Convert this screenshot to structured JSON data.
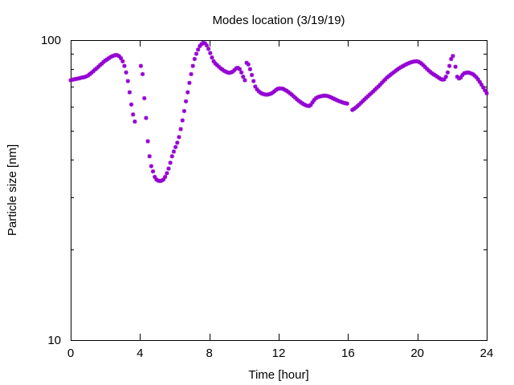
{
  "chart_data": {
    "type": "scatter",
    "title": "Modes location (3/19/19)",
    "xlabel": "Time [hour]",
    "ylabel": "Particle size [nm]",
    "xlim": [
      0,
      24
    ],
    "ylim": [
      10,
      100
    ],
    "yscale": "log",
    "xticks": [
      0,
      4,
      8,
      12,
      16,
      20,
      24
    ],
    "xtick_labels": [
      "0",
      "4",
      "8",
      "12",
      "16",
      "20",
      "24"
    ],
    "yticks": [
      10,
      100
    ],
    "ytick_labels": [
      "10",
      "100"
    ],
    "grid": false,
    "legend": "none",
    "marker": "asterisk",
    "color": "#9400d3",
    "series": [
      {
        "points": [
          [
            0.0,
            73.5
          ],
          [
            0.1,
            73.8
          ],
          [
            0.2,
            74.0
          ],
          [
            0.3,
            74.2
          ],
          [
            0.4,
            74.4
          ],
          [
            0.5,
            74.6
          ],
          [
            0.6,
            74.9
          ],
          [
            0.7,
            75.1
          ],
          [
            0.8,
            75.3
          ],
          [
            0.9,
            75.7
          ],
          [
            1.0,
            76.2
          ],
          [
            1.1,
            77.0
          ],
          [
            1.2,
            77.8
          ],
          [
            1.3,
            78.7
          ],
          [
            1.4,
            79.7
          ],
          [
            1.5,
            80.5
          ],
          [
            1.6,
            81.5
          ],
          [
            1.7,
            82.6
          ],
          [
            1.8,
            83.5
          ],
          [
            1.9,
            84.6
          ],
          [
            2.0,
            85.5
          ],
          [
            2.1,
            86.2
          ],
          [
            2.2,
            87.0
          ],
          [
            2.3,
            87.8
          ],
          [
            2.4,
            88.4
          ],
          [
            2.5,
            88.8
          ],
          [
            2.6,
            89.2
          ],
          [
            2.7,
            89.0
          ],
          [
            2.8,
            88.3
          ],
          [
            2.9,
            87.0
          ],
          [
            3.0,
            85.0
          ],
          [
            3.1,
            82.0
          ],
          [
            3.2,
            78.0
          ],
          [
            3.3,
            73.0
          ],
          [
            3.4,
            67.0
          ],
          [
            3.5,
            61.0
          ],
          [
            3.6,
            56.5
          ],
          [
            3.7,
            53.5
          ],
          [
            4.05,
            82.0
          ],
          [
            4.15,
            77.0
          ],
          [
            4.25,
            64.0
          ],
          [
            4.35,
            55.0
          ],
          [
            4.45,
            46.0
          ],
          [
            4.55,
            41.0
          ],
          [
            4.65,
            38.0
          ],
          [
            4.75,
            36.5
          ],
          [
            4.85,
            35.0
          ],
          [
            4.95,
            34.3
          ],
          [
            5.05,
            34.0
          ],
          [
            5.15,
            33.9
          ],
          [
            5.25,
            34.0
          ],
          [
            5.35,
            34.3
          ],
          [
            5.45,
            35.0
          ],
          [
            5.55,
            36.0
          ],
          [
            5.65,
            37.3
          ],
          [
            5.75,
            39.0
          ],
          [
            5.85,
            41.0
          ],
          [
            5.95,
            42.5
          ],
          [
            6.05,
            44.0
          ],
          [
            6.15,
            45.5
          ],
          [
            6.25,
            47.5
          ],
          [
            6.35,
            50.5
          ],
          [
            6.45,
            54.0
          ],
          [
            6.55,
            58.0
          ],
          [
            6.65,
            62.5
          ],
          [
            6.75,
            67.0
          ],
          [
            6.85,
            72.0
          ],
          [
            6.95,
            77.0
          ],
          [
            7.05,
            82.0
          ],
          [
            7.15,
            86.5
          ],
          [
            7.25,
            90.0
          ],
          [
            7.35,
            93.0
          ],
          [
            7.45,
            95.5
          ],
          [
            7.55,
            97.0
          ],
          [
            7.65,
            98.0
          ],
          [
            7.75,
            97.5
          ],
          [
            7.85,
            96.0
          ],
          [
            7.95,
            93.5
          ],
          [
            8.05,
            90.5
          ],
          [
            8.15,
            87.5
          ],
          [
            8.25,
            85.0
          ],
          [
            8.35,
            83.5
          ],
          [
            8.45,
            82.5
          ],
          [
            8.55,
            81.5
          ],
          [
            8.65,
            80.5
          ],
          [
            8.75,
            79.8
          ],
          [
            8.85,
            79.0
          ],
          [
            8.95,
            78.5
          ],
          [
            9.05,
            78.0
          ],
          [
            9.15,
            77.8
          ],
          [
            9.25,
            78.0
          ],
          [
            9.35,
            78.5
          ],
          [
            9.45,
            79.5
          ],
          [
            9.55,
            80.5
          ],
          [
            9.65,
            80.8
          ],
          [
            9.75,
            80.0
          ],
          [
            9.85,
            78.0
          ],
          [
            9.95,
            75.5
          ],
          [
            10.05,
            73.5
          ],
          [
            10.15,
            84.0
          ],
          [
            10.25,
            83.0
          ],
          [
            10.35,
            80.0
          ],
          [
            10.45,
            76.5
          ],
          [
            10.55,
            73.0
          ],
          [
            10.65,
            70.0
          ],
          [
            10.75,
            68.5
          ],
          [
            10.85,
            67.5
          ],
          [
            10.95,
            66.8
          ],
          [
            11.05,
            66.3
          ],
          [
            11.15,
            66.0
          ],
          [
            11.25,
            65.8
          ],
          [
            11.35,
            65.8
          ],
          [
            11.45,
            66.0
          ],
          [
            11.55,
            66.3
          ],
          [
            11.65,
            66.8
          ],
          [
            11.75,
            67.5
          ],
          [
            11.85,
            68.2
          ],
          [
            11.95,
            68.8
          ],
          [
            12.05,
            69.0
          ],
          [
            12.15,
            69.0
          ],
          [
            12.25,
            68.8
          ],
          [
            12.35,
            68.3
          ],
          [
            12.45,
            67.8
          ],
          [
            12.55,
            67.2
          ],
          [
            12.65,
            66.5
          ],
          [
            12.75,
            65.8
          ],
          [
            12.85,
            65.0
          ],
          [
            12.95,
            64.3
          ],
          [
            13.05,
            63.5
          ],
          [
            13.15,
            62.8
          ],
          [
            13.25,
            62.2
          ],
          [
            13.35,
            61.6
          ],
          [
            13.45,
            61.1
          ],
          [
            13.55,
            60.7
          ],
          [
            13.65,
            60.4
          ],
          [
            13.75,
            60.3
          ],
          [
            13.85,
            60.8
          ],
          [
            13.95,
            62.0
          ],
          [
            14.05,
            63.2
          ],
          [
            14.15,
            64.0
          ],
          [
            14.25,
            64.5
          ],
          [
            14.35,
            64.8
          ],
          [
            14.45,
            65.0
          ],
          [
            14.55,
            65.2
          ],
          [
            14.65,
            65.3
          ],
          [
            14.75,
            65.2
          ],
          [
            14.85,
            65.0
          ],
          [
            14.95,
            64.7
          ],
          [
            15.05,
            64.3
          ],
          [
            15.15,
            63.9
          ],
          [
            15.25,
            63.5
          ],
          [
            15.35,
            63.1
          ],
          [
            15.45,
            62.7
          ],
          [
            15.55,
            62.4
          ],
          [
            15.65,
            62.1
          ],
          [
            15.75,
            61.8
          ],
          [
            15.85,
            61.6
          ],
          [
            15.95,
            61.4
          ],
          [
            16.25,
            58.5
          ],
          [
            16.35,
            59.0
          ],
          [
            16.45,
            59.6
          ],
          [
            16.55,
            60.3
          ],
          [
            16.65,
            61.0
          ],
          [
            16.75,
            61.8
          ],
          [
            16.85,
            62.6
          ],
          [
            16.95,
            63.4
          ],
          [
            17.05,
            64.2
          ],
          [
            17.15,
            65.0
          ],
          [
            17.25,
            65.8
          ],
          [
            17.35,
            66.6
          ],
          [
            17.45,
            67.4
          ],
          [
            17.55,
            68.3
          ],
          [
            17.65,
            69.2
          ],
          [
            17.75,
            70.0
          ],
          [
            17.85,
            71.0
          ],
          [
            17.95,
            72.0
          ],
          [
            18.05,
            73.0
          ],
          [
            18.15,
            74.0
          ],
          [
            18.25,
            75.0
          ],
          [
            18.35,
            75.8
          ],
          [
            18.45,
            76.6
          ],
          [
            18.55,
            77.4
          ],
          [
            18.65,
            78.2
          ],
          [
            18.75,
            79.0
          ],
          [
            18.85,
            79.8
          ],
          [
            18.95,
            80.5
          ],
          [
            19.05,
            81.2
          ],
          [
            19.15,
            81.8
          ],
          [
            19.25,
            82.4
          ],
          [
            19.35,
            83.0
          ],
          [
            19.45,
            83.5
          ],
          [
            19.55,
            84.0
          ],
          [
            19.65,
            84.4
          ],
          [
            19.75,
            84.7
          ],
          [
            19.85,
            84.9
          ],
          [
            19.95,
            85.0
          ],
          [
            20.05,
            84.8
          ],
          [
            20.15,
            84.2
          ],
          [
            20.25,
            83.4
          ],
          [
            20.35,
            82.4
          ],
          [
            20.45,
            81.3
          ],
          [
            20.55,
            80.2
          ],
          [
            20.65,
            79.2
          ],
          [
            20.75,
            78.3
          ],
          [
            20.85,
            77.5
          ],
          [
            20.95,
            76.8
          ],
          [
            21.05,
            76.2
          ],
          [
            21.15,
            75.5
          ],
          [
            21.25,
            74.8
          ],
          [
            21.35,
            74.2
          ],
          [
            21.45,
            73.8
          ],
          [
            21.55,
            74.0
          ],
          [
            21.65,
            75.5
          ],
          [
            21.75,
            78.0
          ],
          [
            21.85,
            82.0
          ],
          [
            21.95,
            86.5
          ],
          [
            22.05,
            88.5
          ],
          [
            22.2,
            81.5
          ],
          [
            22.3,
            75.5
          ],
          [
            22.4,
            74.5
          ],
          [
            22.5,
            75.0
          ],
          [
            22.6,
            76.5
          ],
          [
            22.7,
            77.5
          ],
          [
            22.8,
            77.8
          ],
          [
            22.9,
            78.0
          ],
          [
            23.0,
            77.8
          ],
          [
            23.1,
            77.4
          ],
          [
            23.2,
            77.0
          ],
          [
            23.3,
            76.2
          ],
          [
            23.4,
            75.2
          ],
          [
            23.5,
            74.0
          ],
          [
            23.6,
            72.5
          ],
          [
            23.7,
            71.0
          ],
          [
            23.8,
            69.5
          ],
          [
            23.9,
            68.0
          ],
          [
            24.0,
            66.5
          ]
        ]
      }
    ]
  }
}
